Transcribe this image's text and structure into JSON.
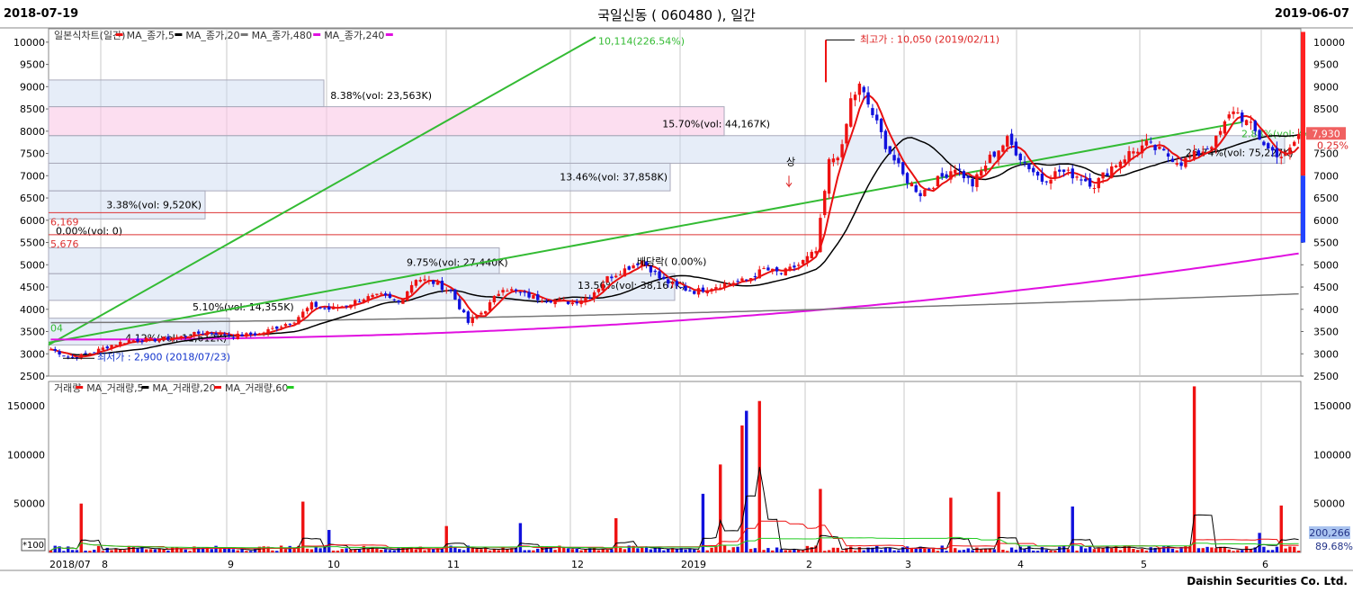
{
  "header": {
    "start_date": "2018-07-19",
    "end_date": "2019-06-07",
    "title": "국일신동 ( 060480 ), 일간"
  },
  "footer": {
    "brand": "Daishin Securities Co. Ltd."
  },
  "colors": {
    "up": "#ee1111",
    "down": "#1111dd",
    "ma5": "#e81010",
    "ma20": "#000000",
    "ma480": "#777777",
    "ma240": "#e010e0",
    "trend": "#33bb33",
    "vol_ma60": "#22cc22"
  },
  "chart_data": [
    {
      "type": "candlestick",
      "legend": [
        "일본식차트(일간)",
        "MA_종가,5",
        "MA_종가,20",
        "MA_종가,480",
        "MA_종가,240"
      ],
      "x_tick_labels": [
        "2018/07",
        "8",
        "9",
        "10",
        "11",
        "12",
        "2019",
        "2",
        "3",
        "4",
        "5",
        "6"
      ],
      "ylim": [
        2500,
        10300
      ],
      "y_ticks": [
        2500,
        3000,
        3500,
        4000,
        4500,
        5000,
        5500,
        6000,
        6500,
        7000,
        7500,
        8000,
        8500,
        9000,
        9500,
        10000
      ],
      "price_path": [
        [
          0,
          3100
        ],
        [
          5,
          2900
        ],
        [
          10,
          3050
        ],
        [
          14,
          3200
        ],
        [
          18,
          3300
        ],
        [
          24,
          3320
        ],
        [
          30,
          3380
        ],
        [
          36,
          3500
        ],
        [
          42,
          3400
        ],
        [
          48,
          3450
        ],
        [
          52,
          3600
        ],
        [
          56,
          3750
        ],
        [
          60,
          4100
        ],
        [
          64,
          4000
        ],
        [
          68,
          4100
        ],
        [
          72,
          4250
        ],
        [
          76,
          4300
        ],
        [
          80,
          4150
        ],
        [
          84,
          4700
        ],
        [
          88,
          4600
        ],
        [
          92,
          4400
        ],
        [
          96,
          3700
        ],
        [
          100,
          4000
        ],
        [
          104,
          4500
        ],
        [
          108,
          4350
        ],
        [
          112,
          4250
        ],
        [
          116,
          4200
        ],
        [
          120,
          4150
        ],
        [
          124,
          4300
        ],
        [
          128,
          4700
        ],
        [
          132,
          4900
        ],
        [
          136,
          5100
        ],
        [
          140,
          4700
        ],
        [
          144,
          4500
        ],
        [
          148,
          4400
        ],
        [
          152,
          4500
        ],
        [
          156,
          4600
        ],
        [
          160,
          4650
        ],
        [
          164,
          4900
        ],
        [
          168,
          4800
        ],
        [
          172,
          5000
        ],
        [
          176,
          5300
        ],
        [
          179,
          7300
        ],
        [
          182,
          7600
        ],
        [
          184,
          8700
        ],
        [
          186,
          9000
        ],
        [
          188,
          8600
        ],
        [
          192,
          7700
        ],
        [
          196,
          7000
        ],
        [
          200,
          6600
        ],
        [
          204,
          6900
        ],
        [
          208,
          7200
        ],
        [
          212,
          6800
        ],
        [
          216,
          7400
        ],
        [
          220,
          7800
        ],
        [
          224,
          7300
        ],
        [
          228,
          6900
        ],
        [
          232,
          7100
        ],
        [
          236,
          7000
        ],
        [
          240,
          6800
        ],
        [
          244,
          7200
        ],
        [
          248,
          7500
        ],
        [
          252,
          7700
        ],
        [
          256,
          7500
        ],
        [
          260,
          7300
        ],
        [
          264,
          7500
        ],
        [
          268,
          7800
        ],
        [
          272,
          8500
        ],
        [
          276,
          8100
        ],
        [
          280,
          7600
        ],
        [
          284,
          7400
        ],
        [
          287,
          7930
        ]
      ],
      "annotations": {
        "high": "최고가 : 10,050 (2019/02/11)",
        "low": "최저가 : 2,900 (2018/07/23)",
        "trend_end": "10,114(226.54%)",
        "zone1": "8.38%(vol: 23,563K)",
        "zone2": "15.70%(vol: 44,167K)",
        "zone3": "13.46%(vol: 37,858K)",
        "zone4": "3.38%(vol: 9,520K)",
        "zone5": "0.00%(vol: 0)",
        "zone6": "9.75%(vol: 27,440K)",
        "zone7": "5.10%(vol: 14,355K)",
        "zone8": "4.12%(vol: 11,612K)",
        "zone9": "13.56%(vol: 38,167K)",
        "zone10": "26.74%(vol: 75,227K)",
        "zone11": "2.88%(vol: 44,800)",
        "level1": "6,169",
        "level2": "5,676",
        "small_left": "04",
        "event1": "배당락( 0.00%)",
        "event2": "상",
        "last_price": "7,930",
        "last_change": "0.25%"
      }
    },
    {
      "type": "bar",
      "legend": [
        "거래량",
        "MA_거래량,5",
        "MA_거래량,20",
        "MA_거래량,60"
      ],
      "ylim": [
        0,
        175000
      ],
      "y_ticks": [
        50000,
        100000,
        150000
      ],
      "multiplier_label": "*100",
      "last_volume": "200,266",
      "last_volume_pct": "89.68%",
      "spikes": [
        [
          10,
          50000
        ],
        [
          84,
          52000
        ],
        [
          94,
          23000
        ],
        [
          132,
          27000
        ],
        [
          158,
          30000
        ],
        [
          189,
          35000
        ],
        [
          219,
          60000
        ],
        [
          224,
          90000
        ],
        [
          232,
          130000
        ],
        [
          234,
          145000
        ],
        [
          237,
          155000
        ],
        [
          258,
          65000
        ],
        [
          302,
          56000
        ],
        [
          318,
          62000
        ],
        [
          343,
          47000
        ],
        [
          384,
          170000
        ],
        [
          406,
          20000
        ],
        [
          412,
          48000
        ]
      ]
    }
  ]
}
